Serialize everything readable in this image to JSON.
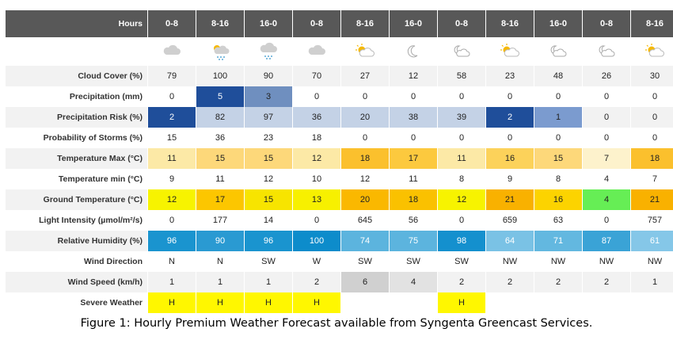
{
  "table": {
    "header_label": "Hours",
    "columns": [
      "0-8",
      "8-16",
      "16-0",
      "0-8",
      "8-16",
      "16-0",
      "0-8",
      "8-16",
      "16-0",
      "0-8",
      "8-16"
    ],
    "weather_icons": [
      "cloud-icon",
      "sun-cloud-rain-icon",
      "cloud-rain-icon",
      "cloud-icon",
      "sun-cloud-icon",
      "moon-icon",
      "moon-cloud-icon",
      "sun-cloud-icon",
      "moon-cloud-icon",
      "moon-cloud-icon",
      "sun-cloud-icon"
    ],
    "rows": [
      {
        "label": "Cloud Cover (%)",
        "values": [
          "79",
          "100",
          "90",
          "70",
          "27",
          "12",
          "58",
          "23",
          "48",
          "26",
          "30"
        ],
        "colors": [
          "#f2f2f2",
          "#f2f2f2",
          "#f2f2f2",
          "#f2f2f2",
          "#f2f2f2",
          "#f2f2f2",
          "#f2f2f2",
          "#f2f2f2",
          "#f2f2f2",
          "#f2f2f2",
          "#f2f2f2"
        ]
      },
      {
        "label": "Precipitation (mm)",
        "values": [
          "0",
          "5",
          "3",
          "0",
          "0",
          "0",
          "0",
          "0",
          "0",
          "0",
          "0"
        ],
        "colors": [
          "#ffffff",
          "#1f4e9a",
          "#6f8fbf",
          "#ffffff",
          "#ffffff",
          "#ffffff",
          "#ffffff",
          "#ffffff",
          "#ffffff",
          "#ffffff",
          "#ffffff"
        ]
      },
      {
        "label": "Precipitation Risk (%)",
        "values": [
          "2",
          "82",
          "97",
          "36",
          "20",
          "38",
          "39",
          "2",
          "1",
          "0",
          "0"
        ],
        "colors": [
          "#1f4e9a",
          "#c4d2e6",
          "#c4d2e6",
          "#c4d2e6",
          "#c4d2e6",
          "#c4d2e6",
          "#c4d2e6",
          "#1f4e9a",
          "#7b9bcf",
          "#f2f2f2",
          "#f2f2f2"
        ]
      },
      {
        "label": "Probability of Storms (%)",
        "values": [
          "15",
          "36",
          "23",
          "18",
          "0",
          "0",
          "0",
          "0",
          "0",
          "0",
          "0"
        ],
        "colors": [
          "#ffffff",
          "#ffffff",
          "#ffffff",
          "#ffffff",
          "#ffffff",
          "#ffffff",
          "#ffffff",
          "#ffffff",
          "#ffffff",
          "#ffffff",
          "#ffffff"
        ]
      },
      {
        "label": "Temperature Max (°C)",
        "values": [
          "11",
          "15",
          "15",
          "12",
          "18",
          "17",
          "11",
          "16",
          "15",
          "7",
          "18"
        ],
        "colors": [
          "#fce9a6",
          "#fdd87a",
          "#fdd87a",
          "#fce9a6",
          "#fbc02d",
          "#fcc93e",
          "#fce9a6",
          "#fcd25a",
          "#fdd87a",
          "#fdf2cc",
          "#fbc02d"
        ]
      },
      {
        "label": "Temperature min (°C)",
        "values": [
          "9",
          "11",
          "12",
          "10",
          "12",
          "11",
          "8",
          "9",
          "8",
          "4",
          "7"
        ],
        "colors": [
          "#ffffff",
          "#ffffff",
          "#ffffff",
          "#ffffff",
          "#ffffff",
          "#ffffff",
          "#ffffff",
          "#ffffff",
          "#ffffff",
          "#ffffff",
          "#ffffff"
        ]
      },
      {
        "label": "Ground Temperature (°C)",
        "values": [
          "12",
          "17",
          "15",
          "13",
          "20",
          "18",
          "12",
          "21",
          "16",
          "4",
          "21"
        ],
        "colors": [
          "#f7f300",
          "#fcc600",
          "#f7e400",
          "#f7f000",
          "#fab800",
          "#fac100",
          "#f7f300",
          "#f9b100",
          "#fcd300",
          "#66ee55",
          "#f9b100"
        ]
      },
      {
        "label": "Light Intensity (µmol/m²/s)",
        "values": [
          "0",
          "177",
          "14",
          "0",
          "645",
          "56",
          "0",
          "659",
          "63",
          "0",
          "757"
        ],
        "colors": [
          "#ffffff",
          "#ffffff",
          "#ffffff",
          "#ffffff",
          "#ffffff",
          "#ffffff",
          "#ffffff",
          "#ffffff",
          "#ffffff",
          "#ffffff",
          "#ffffff"
        ]
      },
      {
        "label": "Relative Humidity (%)",
        "values": [
          "96",
          "90",
          "96",
          "100",
          "74",
          "75",
          "98",
          "64",
          "71",
          "87",
          "61"
        ],
        "colors": [
          "#1a94cf",
          "#2a9ad2",
          "#1a94cf",
          "#0d8ccb",
          "#5cb4de",
          "#5cb4de",
          "#1490ce",
          "#7ac2e5",
          "#63b8e0",
          "#3aa3d6",
          "#85c7e8"
        ]
      },
      {
        "label": "Wind Direction",
        "values": [
          "N",
          "N",
          "SW",
          "W",
          "SW",
          "SW",
          "SW",
          "NW",
          "NW",
          "NW",
          "NW"
        ],
        "colors": [
          "#ffffff",
          "#ffffff",
          "#ffffff",
          "#ffffff",
          "#ffffff",
          "#ffffff",
          "#ffffff",
          "#ffffff",
          "#ffffff",
          "#ffffff",
          "#ffffff"
        ]
      },
      {
        "label": "Wind Speed (km/h)",
        "values": [
          "1",
          "1",
          "1",
          "2",
          "6",
          "4",
          "2",
          "2",
          "2",
          "2",
          "1"
        ],
        "colors": [
          "#f2f2f2",
          "#f2f2f2",
          "#f2f2f2",
          "#f2f2f2",
          "#d0d0d0",
          "#e2e2e2",
          "#f2f2f2",
          "#f2f2f2",
          "#f2f2f2",
          "#f2f2f2",
          "#f2f2f2"
        ]
      },
      {
        "label": "Severe Weather",
        "values": [
          "H",
          "H",
          "H",
          "H",
          "",
          "",
          "H",
          "",
          "",
          "",
          ""
        ],
        "colors": [
          "#fff700",
          "#fff700",
          "#fff700",
          "#fff700",
          "#ffffff",
          "#ffffff",
          "#fff700",
          "#ffffff",
          "#ffffff",
          "#ffffff",
          "#ffffff"
        ]
      }
    ],
    "colors": {
      "header_bg": "#585858",
      "label_shade": "#f2f2f2",
      "label_plain": "#ffffff",
      "white_text_on": [
        "#1f4e9a",
        "#1a94cf",
        "#2a9ad2",
        "#0d8ccb",
        "#1490ce",
        "#5cb4de",
        "#7ac2e5",
        "#63b8e0",
        "#3aa3d6",
        "#85c7e8"
      ]
    }
  },
  "caption": "Figure 1: Hourly Premium Weather Forecast available from Syngenta Greencast Services."
}
